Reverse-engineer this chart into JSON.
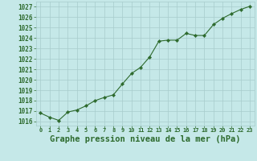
{
  "x": [
    0,
    1,
    2,
    3,
    4,
    5,
    6,
    7,
    8,
    9,
    10,
    11,
    12,
    13,
    14,
    15,
    16,
    17,
    18,
    19,
    20,
    21,
    22,
    23
  ],
  "y": [
    1016.8,
    1016.4,
    1016.1,
    1016.9,
    1017.1,
    1017.5,
    1018.0,
    1018.3,
    1018.55,
    1019.6,
    1020.6,
    1021.2,
    1022.2,
    1023.7,
    1023.8,
    1023.8,
    1024.45,
    1024.25,
    1024.25,
    1025.3,
    1025.9,
    1026.35,
    1026.75,
    1027.05
  ],
  "line_color": "#2d6a2d",
  "marker": "D",
  "marker_size": 2.2,
  "bg_color": "#c5e8e8",
  "grid_color": "#a8cccc",
  "xlabel": "Graphe pression niveau de la mer (hPa)",
  "xlabel_fontsize": 7.5,
  "ytick_min": 1016,
  "ytick_max": 1027,
  "ytick_step": 1,
  "xtick_labels": [
    "0",
    "1",
    "2",
    "3",
    "4",
    "5",
    "6",
    "7",
    "8",
    "9",
    "10",
    "11",
    "12",
    "13",
    "14",
    "15",
    "16",
    "17",
    "18",
    "19",
    "20",
    "21",
    "22",
    "23"
  ],
  "ylim": [
    1015.6,
    1027.5
  ],
  "xlim": [
    -0.5,
    23.5
  ]
}
